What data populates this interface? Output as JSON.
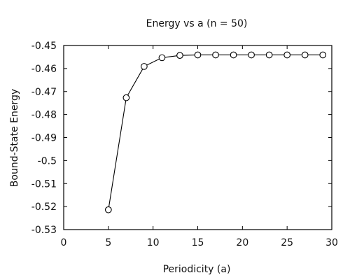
{
  "chart_data": {
    "type": "line",
    "title": "Energy vs a (n = 50)",
    "xlabel": "Periodicity (a)",
    "ylabel": "Bound-State Energy",
    "xlim": [
      0,
      30
    ],
    "ylim": [
      -0.53,
      -0.45
    ],
    "xticks": [
      0,
      5,
      10,
      15,
      20,
      25,
      30
    ],
    "yticks": [
      -0.45,
      -0.46,
      -0.47,
      -0.48,
      -0.49,
      -0.5,
      -0.51,
      -0.52,
      -0.53
    ],
    "xtick_labels": [
      "0",
      "5",
      "10",
      "15",
      "20",
      "25",
      "30"
    ],
    "ytick_labels": [
      "-0.45",
      "-0.46",
      "-0.47",
      "-0.48",
      "-0.49",
      "-0.5",
      "-0.51",
      "-0.52",
      "-0.53"
    ],
    "grid": false,
    "legend": "none",
    "marker": "open-circle",
    "line_color": "#000000",
    "series": [
      {
        "x": [
          5,
          7,
          9,
          11,
          13,
          15,
          17,
          19,
          21,
          23,
          25,
          27,
          29
        ],
        "y": [
          -0.5214,
          -0.4727,
          -0.4591,
          -0.4553,
          -0.4543,
          -0.4541,
          -0.4541,
          -0.4541,
          -0.4541,
          -0.4541,
          -0.4541,
          -0.4541,
          -0.4541
        ]
      }
    ]
  }
}
